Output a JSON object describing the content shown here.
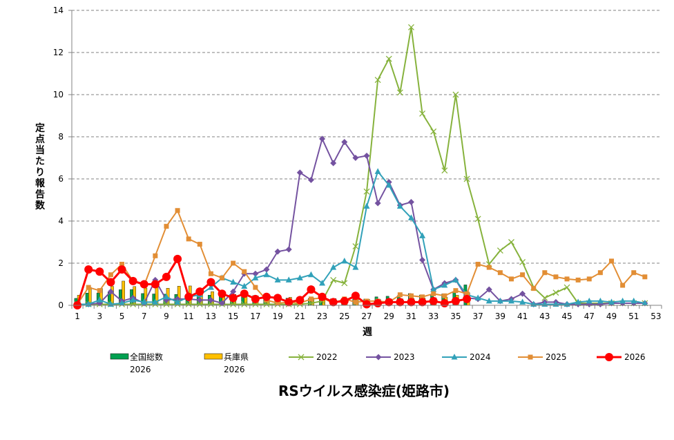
{
  "chart_data": {
    "type": "line",
    "title": "RSウイルス感染症(姫路市)",
    "xlabel": "週",
    "ylabel": "定点当たり報告数",
    "xlim": [
      1,
      53
    ],
    "ylim": [
      0,
      14
    ],
    "x_ticks": [
      1,
      3,
      5,
      7,
      9,
      11,
      13,
      15,
      17,
      19,
      21,
      23,
      25,
      27,
      29,
      31,
      33,
      35,
      37,
      39,
      41,
      43,
      45,
      47,
      49,
      51,
      53
    ],
    "y_ticks": [
      0,
      2,
      4,
      6,
      8,
      10,
      12,
      14
    ],
    "grid": true,
    "legend_position": "bottom",
    "bar_series": [
      {
        "name": "全国総数",
        "name2": "2026",
        "color": "#00A050",
        "values": [
          0.33,
          0.58,
          0.58,
          0.62,
          0.74,
          0.75,
          0.56,
          0.54,
          0.53,
          0.52,
          0.5,
          0.49,
          0.48,
          0.47,
          0.46,
          0.46,
          0.46,
          0.38,
          0.36,
          0.34,
          0.33,
          0.32,
          0.32,
          0.31,
          0.31,
          0.31,
          0.3,
          0.4,
          0.43,
          0.46,
          0.56,
          0.49,
          0.49,
          0.54,
          0.62,
          0.97
        ]
      },
      {
        "name": "兵庫県",
        "name2": "2026",
        "color": "#FFC000",
        "values": [
          0.48,
          0.85,
          0.8,
          0.9,
          1.15,
          0.89,
          0.82,
          0.87,
          0.81,
          0.91,
          0.92,
          0.68,
          0.65,
          0.55,
          0.52,
          0.5,
          0.45,
          0.42,
          0.4,
          0.38,
          0.35,
          0.35,
          0.33,
          0.32,
          0.3,
          0.3,
          0.29,
          0.28,
          0.3,
          0.31,
          0.33,
          0.35,
          0.36,
          0.38,
          0.48,
          0.6
        ]
      }
    ],
    "series": [
      {
        "name": "2022",
        "color": "#86B23C",
        "marker": "x",
        "values": [
          0.05,
          0.05,
          0.05,
          0.05,
          0.05,
          0.05,
          0.05,
          0.05,
          0.05,
          0.05,
          0.05,
          0.05,
          0.05,
          0.05,
          0.05,
          0.05,
          0.05,
          0.05,
          0.05,
          0.05,
          0.05,
          0.1,
          0.2,
          1.2,
          1.05,
          2.8,
          5.4,
          10.7,
          11.7,
          10.1,
          13.2,
          9.1,
          8.25,
          6.4,
          10.0,
          6.0,
          4.1,
          1.95,
          2.6,
          3.0,
          2.05,
          0.85,
          0.35,
          0.6,
          0.85,
          0.1,
          0.1,
          0.1,
          0.1,
          0.1,
          0.1,
          0.1
        ]
      },
      {
        "name": "2023",
        "color": "#7452A0",
        "marker": "diamond",
        "values": [
          0.05,
          0.05,
          0.1,
          0.65,
          0.2,
          0.35,
          0.1,
          1.2,
          0.25,
          0.3,
          0.3,
          0.25,
          0.25,
          0.1,
          0.65,
          1.5,
          1.5,
          1.7,
          2.55,
          2.65,
          6.3,
          5.95,
          7.9,
          6.75,
          7.75,
          7.0,
          7.1,
          4.85,
          5.85,
          4.75,
          4.9,
          2.15,
          0.75,
          1.05,
          1.2,
          0.35,
          0.3,
          0.75,
          0.2,
          0.3,
          0.55,
          0.05,
          0.15,
          0.15,
          0.05,
          0.05,
          0.05,
          0.05,
          0.1,
          0.1,
          0.1,
          0.1
        ]
      },
      {
        "name": "2024",
        "color": "#31A1B9",
        "marker": "triangle",
        "values": [
          0.05,
          0.05,
          0.25,
          0.05,
          0.1,
          0.25,
          0.15,
          0.15,
          0.4,
          0.15,
          0.4,
          0.5,
          0.85,
          1.3,
          1.1,
          0.9,
          1.3,
          1.45,
          1.2,
          1.2,
          1.3,
          1.45,
          1.05,
          1.8,
          2.1,
          1.8,
          4.7,
          6.35,
          5.7,
          4.7,
          4.15,
          3.3,
          0.75,
          0.95,
          1.2,
          0.5,
          0.35,
          0.2,
          0.2,
          0.2,
          0.15,
          0.05,
          0.05,
          0.05,
          0.05,
          0.15,
          0.2,
          0.2,
          0.15,
          0.2,
          0.2,
          0.1
        ]
      },
      {
        "name": "2025",
        "color": "#E28E35",
        "marker": "square",
        "values": [
          0.05,
          0.85,
          0.7,
          1.45,
          1.95,
          1.15,
          0.95,
          2.35,
          3.75,
          4.5,
          3.15,
          2.9,
          1.5,
          1.3,
          2.0,
          1.6,
          0.85,
          0.25,
          0.1,
          0.15,
          0.1,
          0.3,
          0.35,
          0.1,
          0.3,
          0.15,
          0.2,
          0.2,
          0.15,
          0.5,
          0.45,
          0.4,
          0.55,
          0.45,
          0.7,
          0.55,
          1.95,
          1.8,
          1.55,
          1.25,
          1.45,
          0.8,
          1.55,
          1.35,
          1.25,
          1.2,
          1.25,
          1.55,
          2.1,
          0.95,
          1.55,
          1.35
        ]
      },
      {
        "name": "2026",
        "color": "#FF0000",
        "marker": "circle",
        "values": [
          0.0,
          1.7,
          1.6,
          1.1,
          1.7,
          1.15,
          1.0,
          1.0,
          1.35,
          2.2,
          0.4,
          0.65,
          1.1,
          0.55,
          0.35,
          0.55,
          0.3,
          0.4,
          0.35,
          0.15,
          0.25,
          0.75,
          0.4,
          0.15,
          0.2,
          0.45,
          0.05,
          0.1,
          0.15,
          0.15,
          0.15,
          0.15,
          0.2,
          0.1,
          0.2,
          0.3
        ]
      }
    ]
  }
}
